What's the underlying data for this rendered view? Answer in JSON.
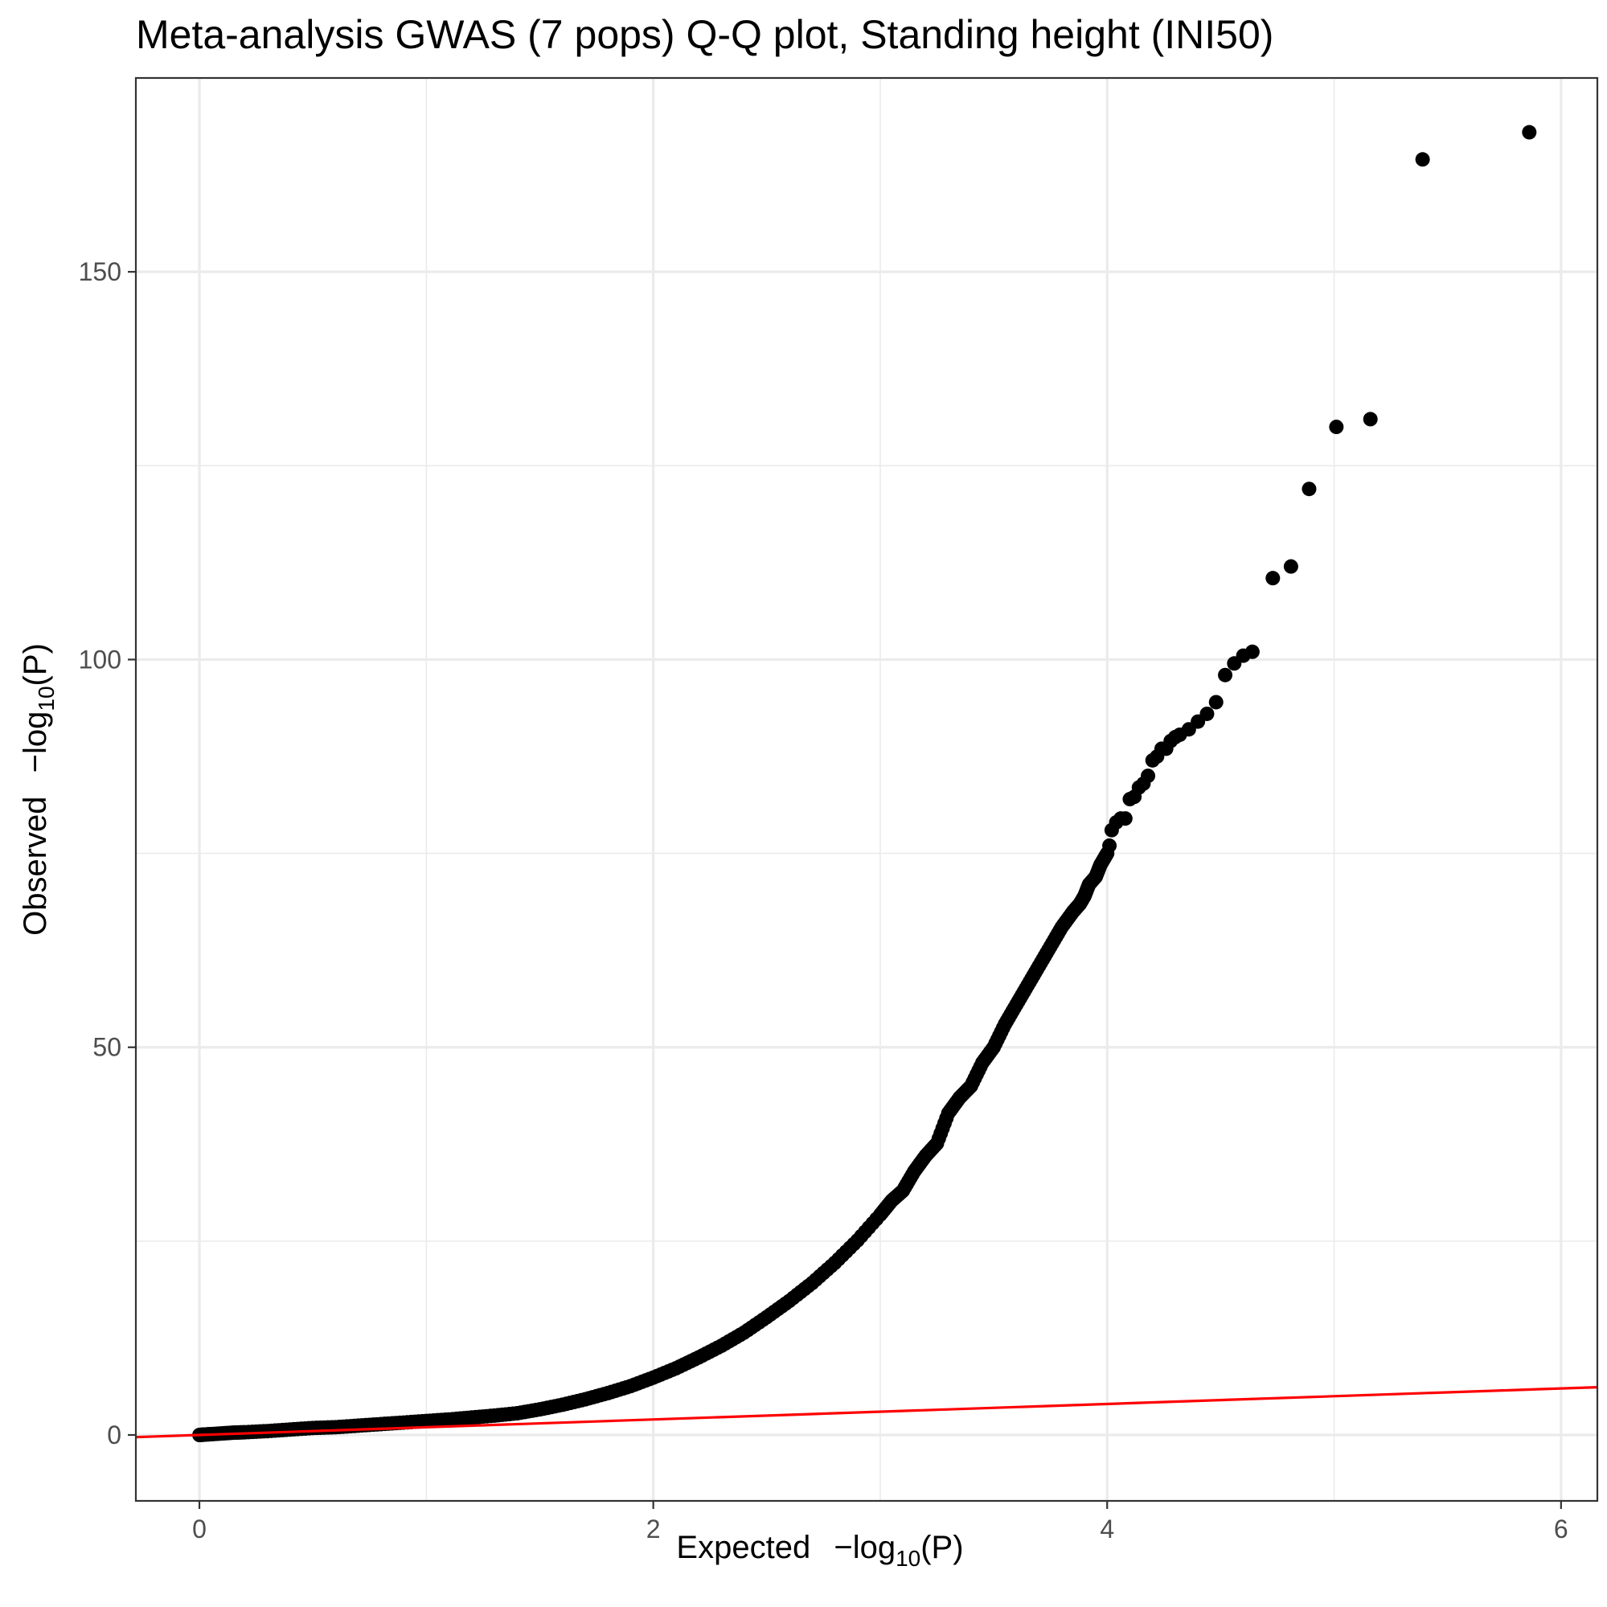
{
  "chart_data": {
    "type": "scatter",
    "title": "Meta-analysis GWAS (7 pops) Q-Q plot, Standing height (INI50)",
    "xlabel": {
      "prefix": "Expected",
      "main": "−log",
      "sub": "10",
      "suffix": "(P)"
    },
    "ylabel": {
      "prefix": "Observed",
      "main": "−log",
      "sub": "10",
      "suffix": "(P)"
    },
    "xlim": [
      -0.28,
      6.16
    ],
    "ylim": [
      -8.5,
      175
    ],
    "x_ticks": [
      0,
      2,
      4,
      6
    ],
    "x_tick_labels": [
      "0",
      "2",
      "4",
      "6"
    ],
    "y_ticks": [
      0,
      50,
      100,
      150
    ],
    "y_tick_labels": [
      "0",
      "50",
      "100",
      "150"
    ],
    "x_minor": [
      1,
      3,
      5
    ],
    "y_minor": [
      25,
      75,
      125
    ],
    "grid": true,
    "point_color": "#000000",
    "reference_line": {
      "slope": 1,
      "intercept": 0,
      "color": "#ff0000"
    },
    "series": [
      {
        "x": [
          0.0,
          0.02,
          0.05,
          0.1,
          0.15,
          0.2,
          0.3,
          0.4,
          0.5,
          0.6,
          0.7,
          0.8,
          0.9,
          1.0,
          1.1,
          1.2,
          1.3,
          1.4,
          1.5,
          1.6,
          1.7,
          1.8,
          1.9,
          2.0,
          2.1,
          2.2,
          2.3,
          2.4,
          2.5,
          2.6,
          2.7,
          2.8,
          2.9,
          3.0,
          3.05,
          3.1,
          3.15,
          3.2,
          3.25,
          3.3,
          3.35,
          3.4,
          3.45,
          3.5,
          3.55,
          3.6,
          3.65,
          3.7,
          3.75,
          3.8,
          3.85,
          3.88,
          3.9,
          3.92,
          3.95,
          3.97,
          4.0,
          4.01,
          4.02,
          4.04,
          4.06,
          4.08,
          4.1,
          4.12,
          4.14,
          4.16,
          4.18,
          4.2,
          4.22,
          4.24,
          4.26,
          4.28,
          4.3,
          4.32,
          4.36,
          4.4,
          4.44,
          4.48,
          4.52,
          4.56,
          4.6,
          4.64,
          4.73,
          4.81,
          4.89,
          5.01,
          5.16,
          5.39,
          5.86
        ],
        "y": [
          0.0,
          0.05,
          0.1,
          0.2,
          0.3,
          0.35,
          0.5,
          0.7,
          0.9,
          1.0,
          1.2,
          1.4,
          1.6,
          1.8,
          2.0,
          2.25,
          2.5,
          2.8,
          3.3,
          3.9,
          4.6,
          5.4,
          6.3,
          7.4,
          8.6,
          10.0,
          11.5,
          13.2,
          15.2,
          17.3,
          19.6,
          22.2,
          25.1,
          28.4,
          30.2,
          31.5,
          34.0,
          36.0,
          37.6,
          41.5,
          43.5,
          45.0,
          48.0,
          50.0,
          53.0,
          55.5,
          58.0,
          60.5,
          63.0,
          65.5,
          67.5,
          68.5,
          69.5,
          71.0,
          72.0,
          73.5,
          75.0,
          76.0,
          78.0,
          79.0,
          79.5,
          79.5,
          82.0,
          82.3,
          83.5,
          84.0,
          85.0,
          87.0,
          87.5,
          88.5,
          88.5,
          89.5,
          90.0,
          90.3,
          91.0,
          92.0,
          93.0,
          94.5,
          98.0,
          99.5,
          100.5,
          101.0,
          110.5,
          112.0,
          122.0,
          130.0,
          131.0,
          164.5,
          168.0
        ]
      }
    ]
  }
}
